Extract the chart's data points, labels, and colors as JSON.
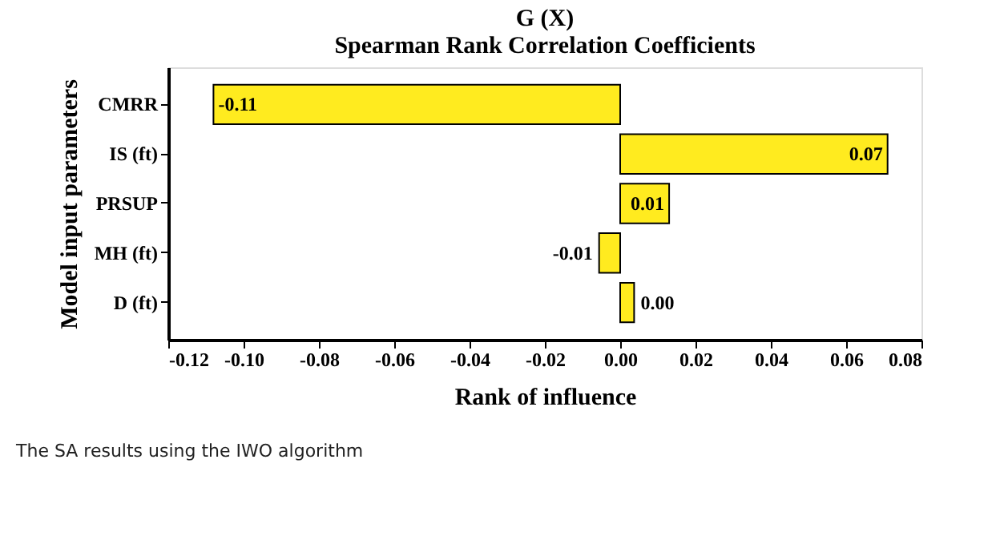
{
  "chart_data": {
    "type": "bar",
    "orientation": "horizontal",
    "title": "G (X)",
    "subtitle": "Spearman Rank Correlation Coefficients",
    "categories": [
      "CMRR",
      "IS (ft)",
      "PRSUP",
      "MH (ft)",
      "D (ft)"
    ],
    "values": [
      -0.108,
      0.071,
      0.013,
      -0.0056,
      0.0037
    ],
    "value_labels": [
      "-0.11",
      "0.07",
      "0.01",
      "-0.01",
      "0.00"
    ],
    "color": "#ffeb1f",
    "xlim": [
      -0.12,
      0.08
    ],
    "xticks": [
      {
        "value": -0.12,
        "label": "-0.12"
      },
      {
        "value": -0.1,
        "label": "-0.10"
      },
      {
        "value": -0.08,
        "label": "-0.08"
      },
      {
        "value": -0.06,
        "label": "-0.06"
      },
      {
        "value": -0.04,
        "label": "-0.04"
      },
      {
        "value": -0.02,
        "label": "-0.02"
      },
      {
        "value": 0,
        "label": "0.00"
      },
      {
        "value": 0.02,
        "label": "0.02"
      },
      {
        "value": 0.04,
        "label": "0.04"
      },
      {
        "value": 0.06,
        "label": "0.06"
      },
      {
        "value": 0.08,
        "label": "0.08"
      }
    ],
    "xlabel": "Rank of influence",
    "ylabel": "Model input parameters",
    "grid": false,
    "annotations": [
      "The SA results using the IWO algorithm"
    ]
  }
}
